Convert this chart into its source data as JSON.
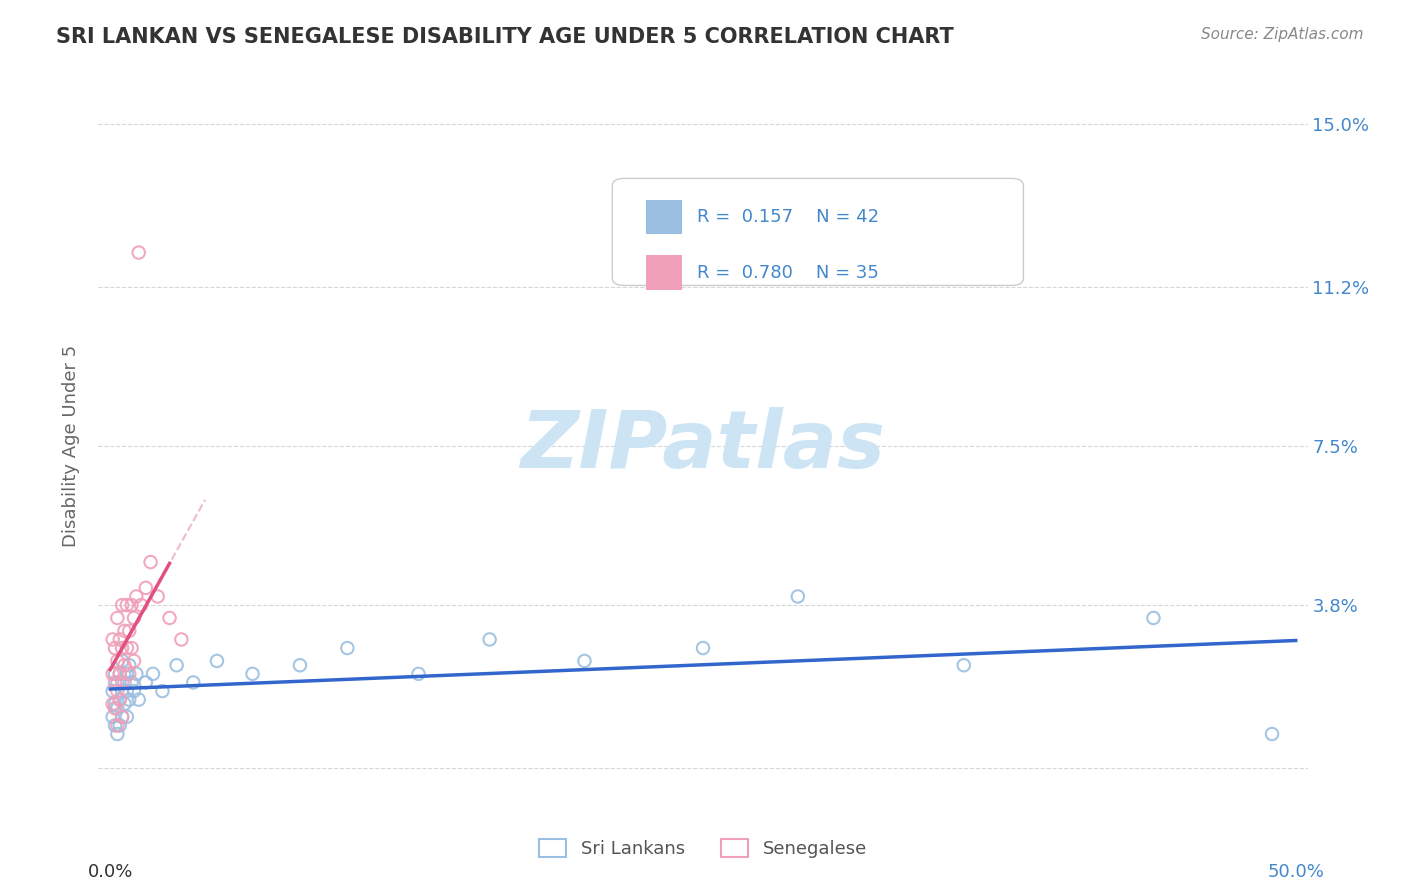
{
  "title": "SRI LANKAN VS SENEGALESE DISABILITY AGE UNDER 5 CORRELATION CHART",
  "source": "Source: ZipAtlas.com",
  "ylabel": "Disability Age Under 5",
  "xlim": [
    -0.005,
    0.505
  ],
  "ylim": [
    -0.008,
    0.158
  ],
  "ytick_positions": [
    0.038,
    0.075,
    0.112,
    0.15
  ],
  "yticklabels": [
    "3.8%",
    "7.5%",
    "11.2%",
    "15.0%"
  ],
  "xtick_positions": [
    0.0,
    0.1,
    0.2,
    0.3,
    0.4,
    0.5
  ],
  "xticklabels_left": "0.0%",
  "xticklabels_right": "50.0%",
  "sri_lankan_R": "0.157",
  "sri_lankan_N": "42",
  "senegalese_R": "0.780",
  "senegalese_N": "35",
  "sri_lankan_dot_color": "#9bbfe0",
  "senegalese_dot_color": "#f0a0b8",
  "sri_lankan_line_color": "#3366cc",
  "senegalese_line_color": "#e05080",
  "senegalese_dash_color": "#e8a0b8",
  "background_color": "#ffffff",
  "grid_color": "#cccccc",
  "watermark_color": "#cce4f4",
  "title_color": "#333333",
  "axis_label_color": "#666666",
  "tick_color_blue": "#4488cc",
  "legend_box_color": "#f0f4f8",
  "legend_box_edge": "#cccccc",
  "legend_label_sri": "Sri Lankans",
  "legend_label_sen": "Senegalese",
  "sri_x": [
    0.001,
    0.001,
    0.002,
    0.002,
    0.002,
    0.003,
    0.003,
    0.003,
    0.004,
    0.004,
    0.004,
    0.005,
    0.005,
    0.005,
    0.006,
    0.006,
    0.007,
    0.007,
    0.007,
    0.008,
    0.008,
    0.009,
    0.01,
    0.011,
    0.012,
    0.015,
    0.018,
    0.022,
    0.028,
    0.035,
    0.045,
    0.06,
    0.08,
    0.1,
    0.13,
    0.16,
    0.2,
    0.25,
    0.29,
    0.36,
    0.44,
    0.49
  ],
  "sri_y": [
    0.018,
    0.012,
    0.022,
    0.015,
    0.01,
    0.02,
    0.014,
    0.008,
    0.022,
    0.016,
    0.01,
    0.025,
    0.018,
    0.012,
    0.02,
    0.015,
    0.022,
    0.018,
    0.012,
    0.024,
    0.016,
    0.02,
    0.018,
    0.022,
    0.016,
    0.02,
    0.022,
    0.018,
    0.024,
    0.02,
    0.025,
    0.022,
    0.024,
    0.028,
    0.022,
    0.03,
    0.025,
    0.028,
    0.04,
    0.024,
    0.035,
    0.008
  ],
  "sen_x": [
    0.001,
    0.001,
    0.001,
    0.002,
    0.002,
    0.002,
    0.003,
    0.003,
    0.003,
    0.003,
    0.004,
    0.004,
    0.004,
    0.005,
    0.005,
    0.005,
    0.005,
    0.006,
    0.006,
    0.007,
    0.007,
    0.008,
    0.008,
    0.009,
    0.009,
    0.01,
    0.01,
    0.011,
    0.012,
    0.013,
    0.015,
    0.017,
    0.02,
    0.025,
    0.03
  ],
  "sen_y": [
    0.03,
    0.022,
    0.015,
    0.028,
    0.02,
    0.014,
    0.035,
    0.025,
    0.018,
    0.01,
    0.03,
    0.022,
    0.016,
    0.038,
    0.028,
    0.02,
    0.012,
    0.032,
    0.024,
    0.038,
    0.028,
    0.032,
    0.022,
    0.038,
    0.028,
    0.035,
    0.025,
    0.04,
    0.12,
    0.038,
    0.042,
    0.048,
    0.04,
    0.035,
    0.03
  ]
}
